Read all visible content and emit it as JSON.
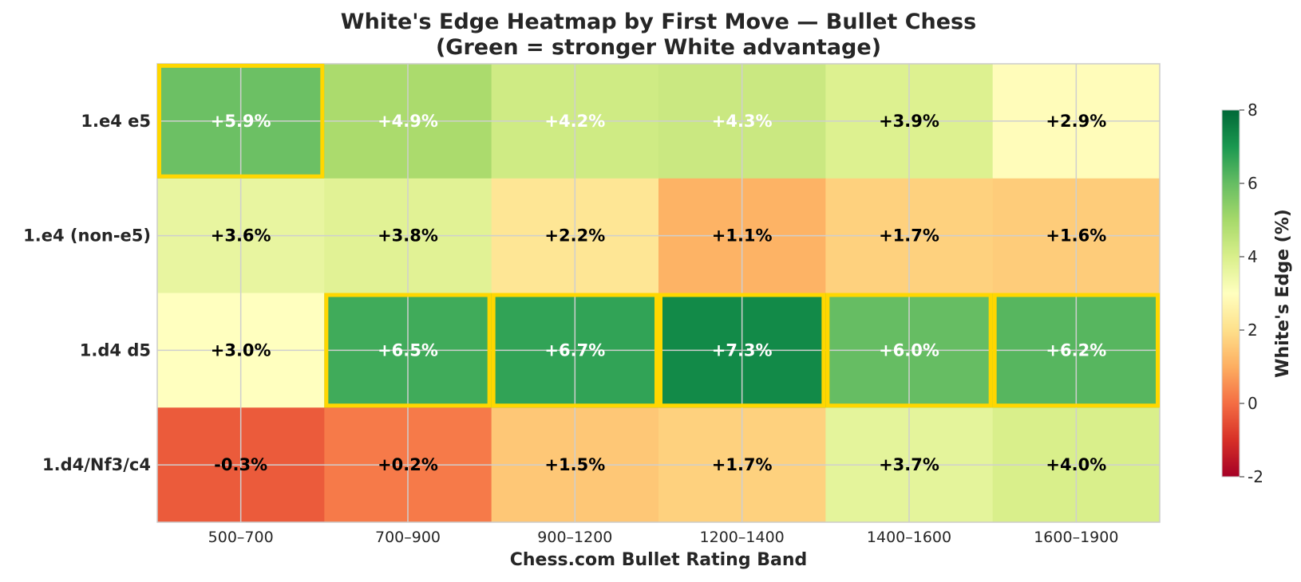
{
  "chart_data": {
    "type": "heatmap",
    "title": "White's Edge Heatmap by First Move — Bullet Chess",
    "subtitle": "(Green = stronger White advantage)",
    "xlabel": "Chess.com Bullet Rating Band",
    "ylabel": "",
    "x_categories": [
      "500–700",
      "700–900",
      "900–1200",
      "1200–1400",
      "1400–1600",
      "1600–1900"
    ],
    "y_categories": [
      "1.e4 e5",
      "1.e4 (non-e5)",
      "1.d4 d5",
      "1.d4/Nf3/c4"
    ],
    "values": [
      [
        5.9,
        4.9,
        4.2,
        4.3,
        3.9,
        2.9
      ],
      [
        3.6,
        3.8,
        2.2,
        1.1,
        1.7,
        1.6
      ],
      [
        3.0,
        6.5,
        6.7,
        7.3,
        6.0,
        6.2
      ],
      [
        -0.3,
        0.2,
        1.5,
        1.7,
        3.7,
        4.0
      ]
    ],
    "cell_labels": [
      [
        "+5.9%",
        "+4.9%",
        "+4.2%",
        "+4.3%",
        "+3.9%",
        "+2.9%"
      ],
      [
        "+3.6%",
        "+3.8%",
        "+2.2%",
        "+1.1%",
        "+1.7%",
        "+1.6%"
      ],
      [
        "+3.0%",
        "+6.5%",
        "+6.7%",
        "+7.3%",
        "+6.0%",
        "+6.2%"
      ],
      [
        "-0.3%",
        "+0.2%",
        "+1.5%",
        "+1.7%",
        "+3.7%",
        "+4.0%"
      ]
    ],
    "highlighted_cells": [
      [
        0,
        0
      ],
      [
        2,
        1
      ],
      [
        2,
        2
      ],
      [
        2,
        3
      ],
      [
        2,
        4
      ],
      [
        2,
        5
      ]
    ],
    "highlight_color": "#ffd700",
    "colormap": "RdYlGn",
    "color_range": [
      -2,
      8
    ],
    "colorbar": {
      "label": "White's Edge (%)",
      "ticks": [
        8,
        6,
        4,
        2,
        0,
        -2
      ],
      "tick_labels": [
        "8",
        "6",
        "4",
        "2",
        "0",
        "-2"
      ]
    },
    "grid": true
  }
}
